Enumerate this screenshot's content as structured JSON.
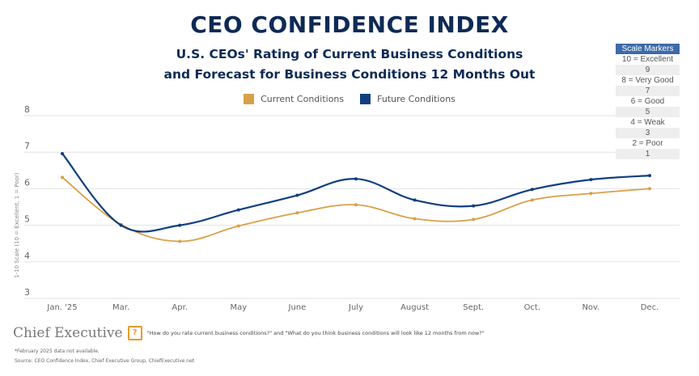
{
  "header": {
    "title": "CEO CONFIDENCE INDEX",
    "subtitle_line1": "U.S. CEOs' Rating of Current Business Conditions",
    "subtitle_line2": "and Forecast for Business Conditions 12 Months Out"
  },
  "scale_markers": {
    "heading": "Scale Markers",
    "items": [
      "10 = Excellent",
      "9",
      "8 = Very Good",
      "7",
      "6 = Good",
      "5",
      "4 = Weak",
      "3",
      "2 = Poor",
      "1"
    ]
  },
  "footer": {
    "brand": "Chief Executive",
    "question": "\"How do you rate current business conditions?\" and \"What do you think business conditions will look like 12 months from now?\"",
    "note": "*February 2025 data not available.",
    "source": "Source: CEO Confidence Index, Chief Executive Group, ChiefExecutive.net"
  },
  "chart_data": {
    "type": "line",
    "title": "CEO CONFIDENCE INDEX",
    "ylabel": "1-10 Scale (10 = Excellent, 1 = Poor)",
    "xlabel": "",
    "ylim": [
      3,
      8
    ],
    "yticks": [
      3,
      4,
      5,
      6,
      7,
      8
    ],
    "grid": true,
    "legend_placement": "top-center",
    "categories": [
      "Jan. '25",
      "Mar.",
      "Apr.",
      "May",
      "June",
      "July",
      "August",
      "Sept.",
      "Oct.",
      "Nov.",
      "Dec."
    ],
    "series": [
      {
        "name": "Current Conditions",
        "color": "#d9a04a",
        "values": [
          6.31,
          5.02,
          4.56,
          4.98,
          5.34,
          5.56,
          5.18,
          5.16,
          5.69,
          5.87,
          6.0
        ]
      },
      {
        "name": "Future Conditions",
        "color": "#103f80",
        "values": [
          6.96,
          5.0,
          5.0,
          5.42,
          5.82,
          6.27,
          5.69,
          5.53,
          5.98,
          6.25,
          6.36
        ]
      }
    ]
  }
}
